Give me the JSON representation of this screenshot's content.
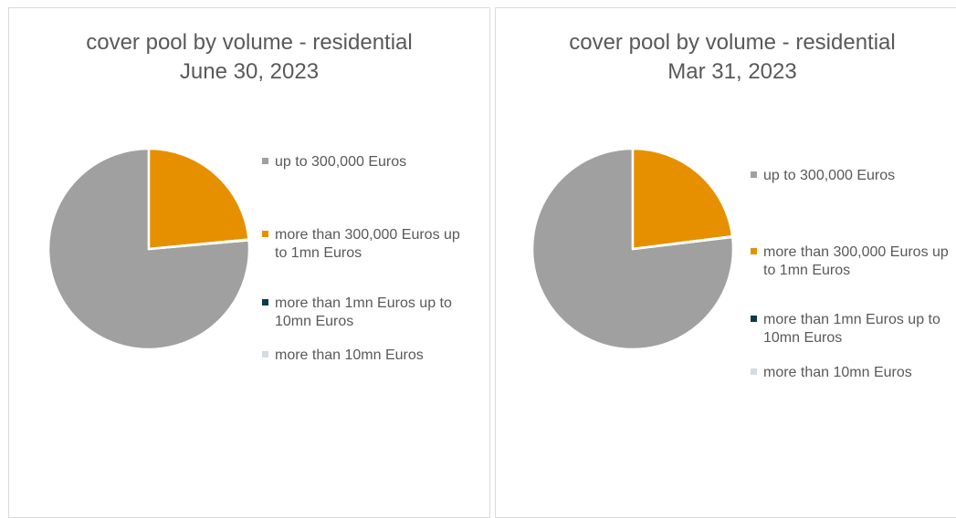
{
  "chart_data": [
    {
      "type": "pie",
      "title": "cover pool by volume - residential",
      "subtitle": "June 30, 2023",
      "categories": [
        "up to 300,000 Euros",
        "more than 300,000 Euros up to 1mn Euros",
        "more than 1mn Euros up to 10mn Euros",
        "more than 10mn Euros"
      ],
      "values": [
        76.4,
        23.5,
        0.1,
        0.0
      ],
      "legend_placement": "right"
    },
    {
      "type": "pie",
      "title": "cover pool by volume - residential",
      "subtitle": "Mar 31, 2023",
      "categories": [
        "up to 300,000 Euros",
        "more than 300,000 Euros up to 1mn Euros",
        "more than 1mn Euros up to 10mn Euros",
        "more than 10mn Euros"
      ],
      "values": [
        76.9,
        23.0,
        0.1,
        0.0
      ],
      "legend_placement": "right"
    }
  ],
  "colors": [
    "#a0a0a0",
    "#e69000",
    "#0d3a4d",
    "#d3dde2"
  ]
}
